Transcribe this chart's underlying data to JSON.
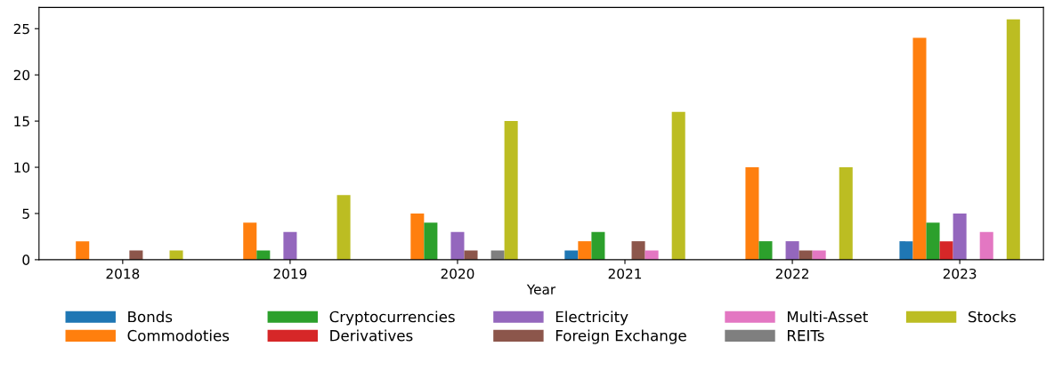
{
  "chart_data": {
    "type": "bar",
    "xlabel": "Year",
    "categories": [
      "2018",
      "2019",
      "2020",
      "2021",
      "2022",
      "2023"
    ],
    "series": [
      {
        "name": "Bonds",
        "color": "#1f77b4",
        "values": [
          0,
          0,
          0,
          1,
          0,
          2
        ]
      },
      {
        "name": "Commodoties",
        "color": "#ff7f0e",
        "values": [
          2,
          4,
          5,
          2,
          10,
          24
        ]
      },
      {
        "name": "Cryptocurrencies",
        "color": "#2ca02c",
        "values": [
          0,
          1,
          4,
          3,
          2,
          4
        ]
      },
      {
        "name": "Derivatives",
        "color": "#d62728",
        "values": [
          0,
          0,
          0,
          0,
          0,
          2
        ]
      },
      {
        "name": "Electricity",
        "color": "#9467bd",
        "values": [
          0,
          3,
          3,
          0,
          2,
          5
        ]
      },
      {
        "name": "Foreign Exchange",
        "color": "#8c564b",
        "values": [
          1,
          0,
          1,
          2,
          1,
          0
        ]
      },
      {
        "name": "Multi-Asset",
        "color": "#e377c2",
        "values": [
          0,
          0,
          0,
          1,
          1,
          3
        ]
      },
      {
        "name": "REITs",
        "color": "#7f7f7f",
        "values": [
          0,
          0,
          1,
          0,
          0,
          0
        ]
      },
      {
        "name": "Stocks",
        "color": "#bcbd22",
        "values": [
          1,
          7,
          15,
          16,
          10,
          26
        ]
      }
    ],
    "ylim": [
      0,
      27.3
    ],
    "yticks": [
      0,
      5,
      10,
      15,
      20,
      25
    ],
    "grid": false,
    "legend": "bottom"
  }
}
